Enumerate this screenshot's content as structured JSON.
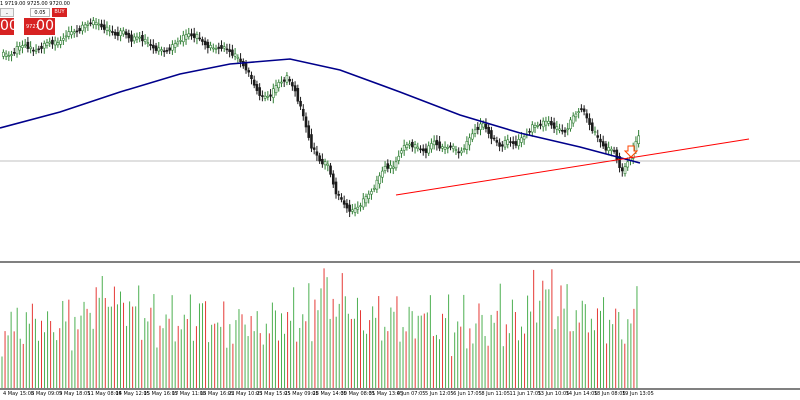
{
  "header": {
    "ohlc_text": "1 9719.00 9725.00 9720.00"
  },
  "trade_panel": {
    "minus_label": "-",
    "lot_value": "0.05",
    "buy_label": "BUY",
    "sell_price": "00",
    "buy_price_prefix": "9727",
    "buy_price": "00"
  },
  "colors": {
    "background": "#ffffff",
    "bull_candle": "#2e7d32",
    "bear_candle": "#1b1b1b",
    "moving_average": "#00008b",
    "trendline": "#ff0000",
    "volume_up": "#4caf50",
    "volume_down": "#e53935",
    "arrow": "#ff4500"
  },
  "icons": {
    "signal_arrow": "down-arrow-icon"
  },
  "time_axis": {
    "labels": [
      "4 May 15:05",
      "8 May 09:05",
      "9 May 18:05",
      "11 May 08:05",
      "14 May 12:05",
      "15 May 16:05",
      "17 May 11:05",
      "18 May 16:05",
      "22 May 10:05",
      "23 May 15:05",
      "25 May 09:05",
      "28 May 14:05",
      "30 May 08:05",
      "31 May 13:05",
      "4 Jun 07:05",
      "5 Jun 12:05",
      "6 Jun 17:05",
      "8 Jun 11:05",
      "11 Jun 17:05",
      "13 Jun 10:05",
      "14 Jun 14:05",
      "18 Jun 08:05",
      "19 Jun 13:05"
    ]
  },
  "chart_data": {
    "type": "candlestick",
    "candles_close_path": [
      0.84,
      0.83,
      0.86,
      0.88,
      0.85,
      0.87,
      0.89,
      0.88,
      0.92,
      0.93,
      0.95,
      0.97,
      0.96,
      0.94,
      0.92,
      0.93,
      0.9,
      0.91,
      0.88,
      0.86,
      0.85,
      0.87,
      0.9,
      0.92,
      0.91,
      0.88,
      0.86,
      0.87,
      0.85,
      0.82,
      0.78,
      0.71,
      0.66,
      0.67,
      0.72,
      0.74,
      0.69,
      0.58,
      0.46,
      0.4,
      0.38,
      0.27,
      0.22,
      0.19,
      0.22,
      0.26,
      0.31,
      0.38,
      0.37,
      0.45,
      0.47,
      0.45,
      0.44,
      0.48,
      0.45,
      0.46,
      0.43,
      0.47,
      0.53,
      0.55,
      0.5,
      0.46,
      0.48,
      0.47,
      0.5,
      0.54,
      0.55,
      0.56,
      0.53,
      0.52,
      0.58,
      0.62,
      0.55,
      0.49,
      0.45,
      0.44,
      0.35,
      0.42,
      0.5
    ],
    "volume_series": [
      0.35,
      0.55,
      0.42,
      0.6,
      0.3,
      0.48,
      0.52,
      0.38,
      0.65,
      0.44,
      0.58,
      0.33,
      0.47,
      0.61,
      0.4,
      0.55,
      0.36,
      0.62,
      0.45,
      0.5,
      0.72,
      0.41,
      0.57,
      0.39,
      0.68,
      0.46,
      0.53,
      0.6,
      0.44,
      0.78,
      0.52,
      0.9,
      0.7,
      0.86,
      1.0,
      0.82,
      0.74,
      0.88,
      0.6,
      0.66,
      0.92,
      0.58,
      0.77,
      0.63,
      0.55,
      0.7,
      0.48,
      0.64,
      0.52,
      0.59,
      0.66,
      0.45,
      0.61,
      0.5,
      0.57,
      0.44,
      0.62,
      0.49,
      0.58,
      0.46,
      0.54,
      0.41,
      0.6,
      0.47,
      0.55,
      0.72,
      0.64,
      0.58,
      0.51,
      0.62,
      0.55,
      0.48
    ]
  }
}
